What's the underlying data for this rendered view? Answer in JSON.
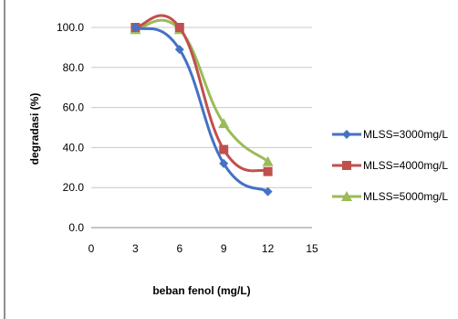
{
  "chart_data": {
    "type": "line",
    "title": "",
    "xlabel": "beban fenol (mg/L)",
    "ylabel": "degradasi (%)",
    "xlim": [
      0,
      15
    ],
    "ylim": [
      0,
      100
    ],
    "x_ticks": [
      0,
      3,
      6,
      9,
      12,
      15
    ],
    "x_tick_labels": [
      "0",
      "3",
      "6",
      "9",
      "12",
      "15"
    ],
    "y_ticks": [
      0,
      20,
      40,
      60,
      80,
      100
    ],
    "y_tick_labels": [
      "0.0",
      "20.0",
      "40.0",
      "60.0",
      "80.0",
      "100.0"
    ],
    "grid": "horizontal",
    "legend_position": "right",
    "x": [
      3,
      6,
      9,
      12
    ],
    "series": [
      {
        "name": "MLSS=3000mg/L",
        "values": [
          100,
          89,
          32,
          18
        ],
        "color": "#4472c4",
        "marker": "diamond"
      },
      {
        "name": "MLSS=4000mg/L",
        "values": [
          100,
          100,
          39,
          28
        ],
        "color": "#c0504d",
        "marker": "square"
      },
      {
        "name": "MLSS=5000mg/L",
        "values": [
          99,
          99,
          52,
          33
        ],
        "color": "#9bbb59",
        "marker": "triangle"
      }
    ]
  }
}
